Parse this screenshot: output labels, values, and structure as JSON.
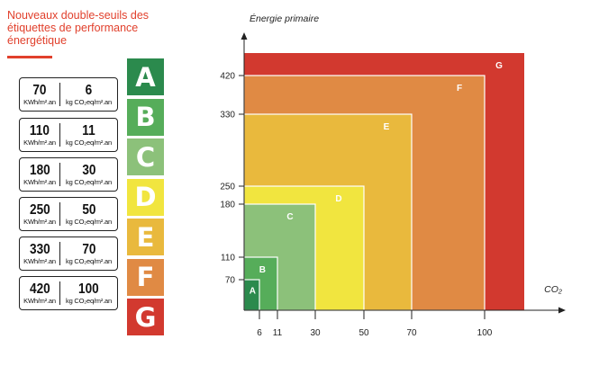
{
  "title": "Nouveaux double-seuils des étiquettes de performance énergétique",
  "thresholds": [
    {
      "energy": "70",
      "co2": "6",
      "energy_unit": "KWh/m².an",
      "co2_unit": "kg CO₂eq/m².an"
    },
    {
      "energy": "110",
      "co2": "11",
      "energy_unit": "KWh/m².an",
      "co2_unit": "kg CO₂eq/m².an"
    },
    {
      "energy": "180",
      "co2": "30",
      "energy_unit": "KWh/m².an",
      "co2_unit": "kg CO₂eq/m².an"
    },
    {
      "energy": "250",
      "co2": "50",
      "energy_unit": "KWh/m².an",
      "co2_unit": "kg CO₂eq/m².an"
    },
    {
      "energy": "330",
      "co2": "70",
      "energy_unit": "KWh/m².an",
      "co2_unit": "kg CO₂eq/m².an"
    },
    {
      "energy": "420",
      "co2": "100",
      "energy_unit": "KWh/m².an",
      "co2_unit": "kg CO₂eq/m².an"
    }
  ],
  "classes": [
    {
      "letter": "A",
      "color": "#2b8a4d"
    },
    {
      "letter": "B",
      "color": "#56ad5a"
    },
    {
      "letter": "C",
      "color": "#8cc17a"
    },
    {
      "letter": "D",
      "color": "#f1e53f"
    },
    {
      "letter": "E",
      "color": "#e9b93d"
    },
    {
      "letter": "F",
      "color": "#e08a44"
    },
    {
      "letter": "G",
      "color": "#d2392f"
    }
  ],
  "chart_data": {
    "type": "diagram",
    "ylabel": "Énergie primaire",
    "xlabel": "CO₂",
    "y_ticks": [
      "70",
      "110",
      "180",
      "250",
      "330",
      "420"
    ],
    "x_ticks": [
      "6",
      "11",
      "30",
      "50",
      "70",
      "100"
    ],
    "zones": [
      {
        "label": "G",
        "x_max": null,
        "y_max": null,
        "color": "#d2392f"
      },
      {
        "label": "F",
        "x_max": 100,
        "y_max": 420,
        "color": "#e08a44"
      },
      {
        "label": "E",
        "x_max": 70,
        "y_max": 330,
        "color": "#e9b93d"
      },
      {
        "label": "D",
        "x_max": 50,
        "y_max": 250,
        "color": "#f1e53f"
      },
      {
        "label": "C",
        "x_max": 30,
        "y_max": 180,
        "color": "#8cc17a"
      },
      {
        "label": "B",
        "x_max": 11,
        "y_max": 110,
        "color": "#56ad5a"
      },
      {
        "label": "A",
        "x_max": 6,
        "y_max": 70,
        "color": "#2b8a4d"
      }
    ]
  }
}
